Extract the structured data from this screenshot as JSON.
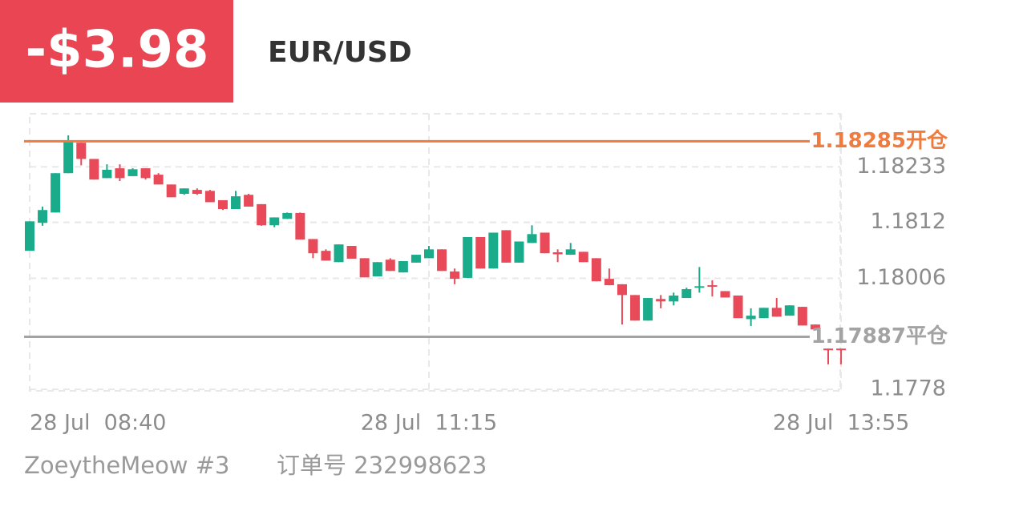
{
  "header": {
    "pnl": "-$3.98",
    "symbol": "EUR/USD"
  },
  "chart_data": {
    "type": "candlestick",
    "categories": [
      "28 Jul  08:40",
      null,
      null,
      null,
      null,
      null,
      null,
      null,
      null,
      null,
      null,
      null,
      null,
      null,
      null,
      null,
      null,
      null,
      null,
      null,
      null,
      null,
      null,
      null,
      null,
      null,
      null,
      null,
      null,
      null,
      null,
      "28 Jul  11:15",
      null,
      null,
      null,
      null,
      null,
      null,
      null,
      null,
      null,
      null,
      null,
      null,
      null,
      null,
      null,
      null,
      null,
      null,
      null,
      null,
      null,
      null,
      null,
      null,
      null,
      null,
      null,
      null,
      null,
      null,
      null,
      "28 Jul  13:55"
    ],
    "open": [
      1.18062,
      1.18119,
      1.1814,
      1.1822,
      1.18282,
      1.18249,
      1.1821,
      1.1823,
      1.18214,
      1.1823,
      1.18217,
      1.18197,
      1.18178,
      1.18186,
      1.18184,
      1.18165,
      1.18147,
      1.18176,
      1.18157,
      1.18114,
      1.18127,
      1.18139,
      1.18086,
      1.18062,
      1.18039,
      1.18072,
      1.18047,
      1.1801,
      1.18044,
      1.18018,
      1.18038,
      1.18047,
      1.18065,
      1.1802,
      1.18007,
      1.1809,
      1.18026,
      1.18104,
      1.18038,
      1.18078,
      1.18099,
      1.18059,
      1.18054,
      1.1806,
      1.18047,
      1.18005,
      1.17994,
      1.17972,
      1.1792,
      1.17964,
      1.17959,
      1.17966,
      1.17987,
      1.17992,
      1.1798,
      1.17971,
      1.17923,
      1.17925,
      1.17946,
      1.1793,
      1.17948,
      1.17912,
      1.17863,
      1.17863
    ],
    "high": [
      1.18122,
      1.18152,
      1.1822,
      1.18297,
      1.18282,
      1.18249,
      1.18238,
      1.18238,
      1.1823,
      1.1823,
      1.1822,
      1.18197,
      1.18189,
      1.18189,
      1.18186,
      1.18165,
      1.18184,
      1.18178,
      1.18157,
      1.1813,
      1.1814,
      1.1814,
      1.18086,
      1.18065,
      1.18075,
      1.18072,
      1.18047,
      1.18039,
      1.18047,
      1.18041,
      1.18054,
      1.18072,
      1.18065,
      1.18026,
      1.1809,
      1.1809,
      1.18099,
      1.18104,
      1.18081,
      1.18114,
      1.18099,
      1.18065,
      1.18078,
      1.1806,
      1.18047,
      1.18026,
      1.17994,
      1.17972,
      1.17966,
      1.17972,
      1.17977,
      1.17987,
      1.18029,
      1.18002,
      1.1798,
      1.17971,
      1.17945,
      1.17946,
      1.17966,
      1.17951,
      1.17948,
      1.17912,
      1.17863,
      1.17863
    ],
    "low": [
      1.18062,
      1.18113,
      1.1814,
      1.1822,
      1.18236,
      1.18207,
      1.1821,
      1.18204,
      1.18214,
      1.18207,
      1.18197,
      1.18171,
      1.18176,
      1.18176,
      1.18161,
      1.18145,
      1.18147,
      1.18152,
      1.18113,
      1.1811,
      1.18127,
      1.18085,
      1.18047,
      1.18042,
      1.18039,
      1.18046,
      1.18008,
      1.1801,
      1.18021,
      1.18018,
      1.18038,
      1.18047,
      1.18021,
      1.17994,
      1.18007,
      1.18026,
      1.18026,
      1.18038,
      1.18038,
      1.18078,
      1.18057,
      1.18039,
      1.18054,
      1.18039,
      1.18,
      1.17992,
      1.17912,
      1.1792,
      1.1792,
      1.17945,
      1.17951,
      1.17966,
      1.17977,
      1.17969,
      1.17967,
      1.17925,
      1.17909,
      1.17925,
      1.17928,
      1.1793,
      1.1791,
      1.17902,
      1.17831,
      1.17831
    ],
    "close": [
      1.18122,
      1.18145,
      1.1822,
      1.18285,
      1.18249,
      1.18207,
      1.18227,
      1.1821,
      1.18228,
      1.1821,
      1.18197,
      1.18171,
      1.18189,
      1.18178,
      1.18161,
      1.18147,
      1.18173,
      1.18152,
      1.18114,
      1.1813,
      1.18139,
      1.18085,
      1.18057,
      1.18042,
      1.18075,
      1.18046,
      1.18008,
      1.18039,
      1.18021,
      1.18041,
      1.18054,
      1.18065,
      1.18021,
      1.18005,
      1.1809,
      1.18026,
      1.18099,
      1.18038,
      1.18081,
      1.18096,
      1.18057,
      1.18055,
      1.18065,
      1.18039,
      1.18,
      1.17992,
      1.17972,
      1.1792,
      1.17966,
      1.17959,
      1.17971,
      1.17984,
      1.1799,
      1.17989,
      1.17967,
      1.17925,
      1.1793,
      1.17946,
      1.17928,
      1.17951,
      1.1791,
      1.17902,
      1.17862,
      1.17862
    ],
    "up_color": "#1aab8b",
    "down_color": "#e84a5a",
    "ylim": [
      1.17777,
      1.18341
    ],
    "yticks": [
      1.18233,
      1.1812,
      1.18006,
      1.1778
    ],
    "grid": true,
    "lines": [
      {
        "value": 1.18285,
        "label": "1.18285开仓",
        "color": "#f07b3f"
      },
      {
        "value": 1.17887,
        "label": "1.17887平仓",
        "color": "#a3a3a3"
      }
    ]
  },
  "footer": {
    "account": "ZoeytheMeow #3",
    "order": "订单号 232998623"
  }
}
